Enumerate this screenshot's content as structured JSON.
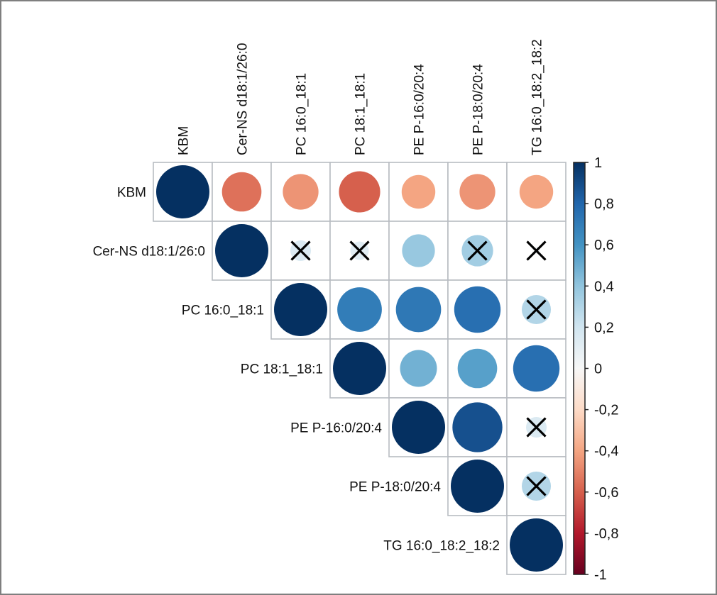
{
  "chart_data": {
    "type": "heatmap",
    "subtype": "correlation-circle-upper",
    "title": "",
    "variables": [
      "KBM",
      "Cer-NS d18:1/26:0",
      "PC 16:0_18:1",
      "PC 18:1_18:1",
      "PE P-16:0/20:4",
      "PE P-18:0/20:4",
      "TG 16:0_18:2_18:2"
    ],
    "matrix": [
      [
        1.0,
        -0.55,
        -0.45,
        -0.6,
        -0.4,
        -0.45,
        -0.4
      ],
      [
        null,
        1.0,
        0.15,
        0.12,
        0.38,
        0.35,
        0.02
      ],
      [
        null,
        null,
        1.0,
        0.7,
        0.72,
        0.76,
        0.3
      ],
      [
        null,
        null,
        null,
        1.0,
        0.48,
        0.55,
        0.76
      ],
      [
        null,
        null,
        null,
        null,
        1.0,
        0.88,
        0.15
      ],
      [
        null,
        null,
        null,
        null,
        null,
        1.0,
        0.3
      ],
      [
        null,
        null,
        null,
        null,
        null,
        null,
        1.0
      ]
    ],
    "non_significant": [
      [
        1,
        2
      ],
      [
        1,
        3
      ],
      [
        1,
        5
      ],
      [
        1,
        6
      ],
      [
        2,
        6
      ],
      [
        4,
        6
      ],
      [
        5,
        6
      ]
    ],
    "colorbar": {
      "range": [
        -1,
        1
      ],
      "tick_values": [
        1,
        0.8,
        0.6,
        0.4,
        0.2,
        0,
        -0.2,
        -0.4,
        -0.6,
        -0.8,
        -1
      ],
      "tick_labels": [
        "1",
        "0,8",
        "0,6",
        "0,4",
        "0,2",
        "0",
        "-0,2",
        "-0,4",
        "-0,6",
        "-0,8",
        "-1"
      ],
      "color_stops": [
        {
          "value": -1.0,
          "color": "#67001f"
        },
        {
          "value": -0.8,
          "color": "#b2182b"
        },
        {
          "value": -0.6,
          "color": "#d6604d"
        },
        {
          "value": -0.4,
          "color": "#f4a582"
        },
        {
          "value": -0.2,
          "color": "#fddbc7"
        },
        {
          "value": 0.0,
          "color": "#f7f7f7"
        },
        {
          "value": 0.2,
          "color": "#d1e5f0"
        },
        {
          "value": 0.4,
          "color": "#92c5de"
        },
        {
          "value": 0.6,
          "color": "#4393c3"
        },
        {
          "value": 0.8,
          "color": "#2166ac"
        },
        {
          "value": 1.0,
          "color": "#053061"
        }
      ]
    },
    "legend_placement": "right",
    "grid": true
  },
  "colors": {
    "grid_line": "#b8bcc2",
    "cross": "#000000",
    "frame": "#7f7f7f"
  }
}
